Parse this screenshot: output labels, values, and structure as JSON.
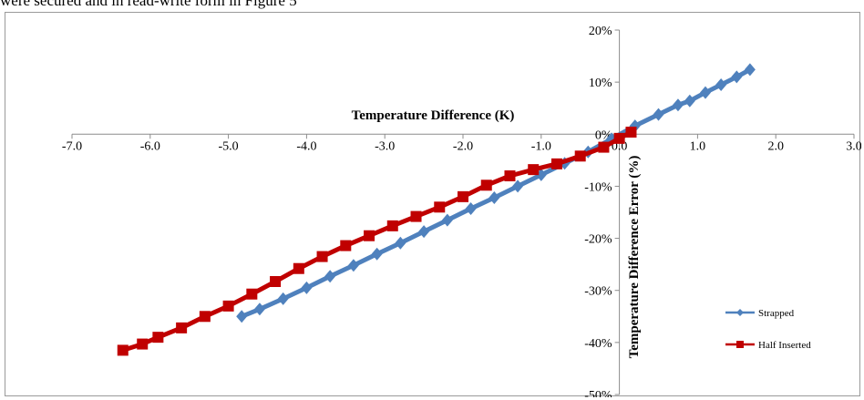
{
  "caption_fragment": "were secured and in read-write form in Figure 5",
  "chart_data": {
    "type": "scatter",
    "title": "",
    "xlabel": "Temperature Difference (K)",
    "ylabel": "Temperature Difference Error (%)",
    "xlim": [
      -7.0,
      3.0
    ],
    "ylim": [
      -50,
      20
    ],
    "x_ticks": [
      -7,
      -6,
      -5,
      -4,
      -3,
      -2,
      -1,
      0,
      1,
      2,
      3
    ],
    "x_tick_labels": [
      "-7.0",
      "-6.0",
      "-5.0",
      "-4.0",
      "-3.0",
      "-2.0",
      "-1.0",
      "0.0",
      "1.0",
      "2.0",
      "3.0"
    ],
    "y_ticks": [
      20,
      10,
      0,
      -10,
      -20,
      -30,
      -40,
      -50
    ],
    "y_tick_labels": [
      "20%",
      "10%",
      "0%",
      "-10%",
      "-20%",
      "-30%",
      "-40%",
      "-50%"
    ],
    "grid": false,
    "legend_position": "bottom-right",
    "series": [
      {
        "name": "Strapped",
        "color": "#4f81bd",
        "marker": "diamond",
        "x": [
          -4.83,
          -4.6,
          -4.3,
          -4.0,
          -3.7,
          -3.4,
          -3.1,
          -2.8,
          -2.5,
          -2.2,
          -1.9,
          -1.6,
          -1.3,
          -1.0,
          -0.7,
          -0.4,
          -0.1,
          0.2,
          0.5,
          0.75,
          0.9,
          1.1,
          1.3,
          1.5,
          1.67
        ],
        "values": [
          -35.0,
          -33.6,
          -31.6,
          -29.5,
          -27.3,
          -25.2,
          -23.0,
          -20.9,
          -18.7,
          -16.5,
          -14.3,
          -12.2,
          -10.0,
          -7.8,
          -5.6,
          -3.4,
          -0.9,
          1.6,
          3.8,
          5.6,
          6.4,
          8.0,
          9.5,
          11.0,
          12.4
        ]
      },
      {
        "name": "Half Inserted",
        "color": "#c00000",
        "marker": "square",
        "x": [
          -6.35,
          -6.1,
          -5.9,
          -5.6,
          -5.3,
          -5.0,
          -4.7,
          -4.4,
          -4.1,
          -3.8,
          -3.5,
          -3.2,
          -2.9,
          -2.6,
          -2.3,
          -2.0,
          -1.7,
          -1.4,
          -1.1,
          -0.8,
          -0.5,
          -0.2,
          0.0,
          0.15
        ],
        "values": [
          -41.5,
          -40.3,
          -39.0,
          -37.2,
          -35.0,
          -33.0,
          -30.7,
          -28.3,
          -25.8,
          -23.5,
          -21.4,
          -19.5,
          -17.6,
          -15.8,
          -14.0,
          -12.0,
          -9.8,
          -8.0,
          -6.8,
          -5.7,
          -4.2,
          -2.5,
          -0.8,
          0.4
        ]
      }
    ]
  }
}
